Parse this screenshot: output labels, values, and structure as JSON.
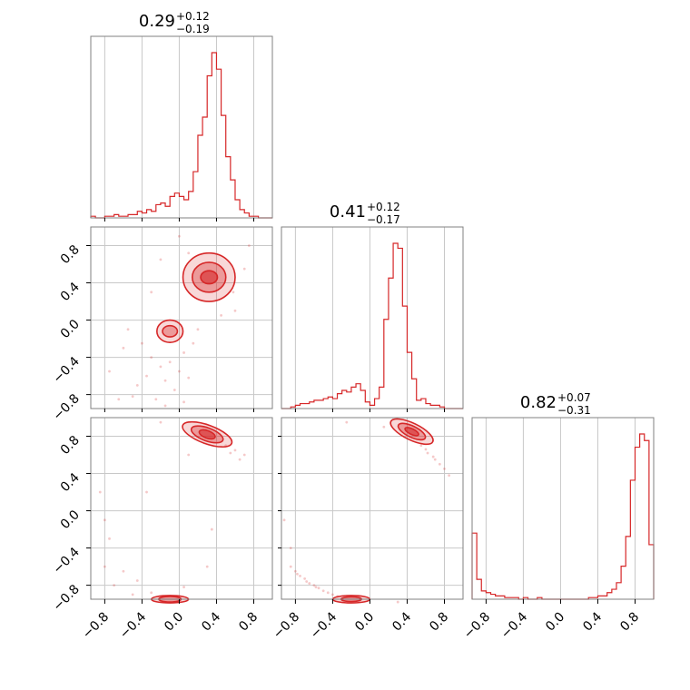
{
  "chart_data": {
    "type": "corner",
    "color": "#d62728",
    "ticks": [
      -0.8,
      -0.4,
      0.0,
      0.4,
      0.8
    ],
    "tick_labels": [
      "−0.8",
      "−0.4",
      "0.0",
      "0.4",
      "0.8"
    ],
    "axis_range": [
      -0.95,
      1.0
    ],
    "grid": true,
    "diagonal_titles": [
      {
        "value": "0.29",
        "plus": "+0.12",
        "minus": "−0.19"
      },
      {
        "value": "0.41",
        "plus": "+0.12",
        "minus": "−0.17"
      },
      {
        "value": "0.82",
        "plus": "+0.07",
        "minus": "−0.31"
      }
    ],
    "histograms": [
      {
        "bin_width": 0.05,
        "bin_start": -0.95,
        "counts": [
          0.01,
          0.0,
          0.0,
          0.01,
          0.01,
          0.02,
          0.01,
          0.01,
          0.02,
          0.02,
          0.04,
          0.03,
          0.05,
          0.04,
          0.08,
          0.09,
          0.07,
          0.13,
          0.15,
          0.13,
          0.11,
          0.16,
          0.28,
          0.5,
          0.61,
          0.86,
          1.0,
          0.9,
          0.62,
          0.37,
          0.23,
          0.11,
          0.05,
          0.03,
          0.01,
          0.01,
          0.0,
          0.0,
          0.0
        ]
      },
      {
        "bin_width": 0.05,
        "bin_start": -0.95,
        "counts": [
          0.0,
          0.0,
          0.01,
          0.02,
          0.03,
          0.03,
          0.04,
          0.05,
          0.05,
          0.06,
          0.07,
          0.06,
          0.09,
          0.11,
          0.1,
          0.13,
          0.15,
          0.11,
          0.04,
          0.02,
          0.06,
          0.13,
          0.54,
          0.79,
          1.0,
          0.97,
          0.62,
          0.34,
          0.18,
          0.05,
          0.06,
          0.03,
          0.02,
          0.02,
          0.01,
          0.0,
          0.0,
          0.0,
          0.0
        ]
      },
      {
        "bin_width": 0.05,
        "bin_start": -0.95,
        "counts": [
          0.4,
          0.12,
          0.05,
          0.04,
          0.03,
          0.02,
          0.02,
          0.01,
          0.01,
          0.01,
          0.0,
          0.01,
          0.0,
          0.0,
          0.01,
          0.0,
          0.0,
          0.0,
          0.0,
          0.0,
          0.0,
          0.0,
          0.0,
          0.0,
          0.0,
          0.01,
          0.01,
          0.02,
          0.02,
          0.04,
          0.06,
          0.1,
          0.2,
          0.38,
          0.72,
          0.92,
          1.0,
          0.96,
          0.33
        ]
      }
    ],
    "contours": [
      {
        "row": 1,
        "col": 0,
        "blobs": [
          {
            "cx": 0.32,
            "cy": 0.46,
            "rx": [
              0.28,
              0.18,
              0.09
            ],
            "ry": [
              0.26,
              0.16,
              0.07
            ]
          },
          {
            "cx": -0.1,
            "cy": -0.12,
            "rx": [
              0.14,
              0.08
            ],
            "ry": [
              0.12,
              0.06
            ]
          }
        ],
        "scatter": [
          [
            -0.75,
            -0.55
          ],
          [
            -0.6,
            -0.3
          ],
          [
            -0.5,
            -0.82
          ],
          [
            -0.45,
            -0.7
          ],
          [
            -0.35,
            -0.6
          ],
          [
            -0.3,
            -0.4
          ],
          [
            -0.25,
            -0.85
          ],
          [
            -0.2,
            -0.5
          ],
          [
            -0.15,
            -0.65
          ],
          [
            -0.1,
            -0.45
          ],
          [
            -0.05,
            -0.75
          ],
          [
            0.0,
            -0.55
          ],
          [
            0.05,
            -0.35
          ],
          [
            0.1,
            -0.62
          ],
          [
            -0.3,
            0.3
          ],
          [
            -0.2,
            0.65
          ],
          [
            0.0,
            0.9
          ],
          [
            0.1,
            0.72
          ],
          [
            0.6,
            0.1
          ],
          [
            0.7,
            0.55
          ],
          [
            0.75,
            0.8
          ],
          [
            -0.55,
            -0.1
          ],
          [
            -0.4,
            -0.25
          ],
          [
            0.15,
            -0.25
          ],
          [
            0.2,
            -0.1
          ],
          [
            -0.65,
            -0.85
          ],
          [
            -0.15,
            -0.92
          ],
          [
            0.05,
            -0.88
          ],
          [
            0.58,
            0.3
          ],
          [
            0.45,
            0.05
          ]
        ]
      },
      {
        "row": 2,
        "col": 0,
        "blobs": [
          {
            "cx": 0.3,
            "cy": 0.82,
            "rx": [
              0.28,
              0.18,
              0.09
            ],
            "ry": [
              0.1,
              0.07,
              0.04
            ],
            "rot": -0.35
          },
          {
            "cx": -0.1,
            "cy": -0.95,
            "rx": [
              0.2,
              0.12
            ],
            "ry": [
              0.04,
              0.03
            ]
          }
        ],
        "scatter": [
          [
            -0.8,
            -0.6
          ],
          [
            -0.75,
            -0.3
          ],
          [
            -0.7,
            -0.8
          ],
          [
            -0.6,
            -0.65
          ],
          [
            -0.5,
            -0.9
          ],
          [
            -0.45,
            -0.75
          ],
          [
            -0.3,
            -0.88
          ],
          [
            0.5,
            0.7
          ],
          [
            0.55,
            0.62
          ],
          [
            0.6,
            0.65
          ],
          [
            0.7,
            0.6
          ],
          [
            0.1,
            0.6
          ],
          [
            -0.2,
            0.95
          ],
          [
            0.35,
            -0.2
          ],
          [
            -0.35,
            0.2
          ],
          [
            -0.85,
            0.2
          ],
          [
            -0.8,
            -0.1
          ],
          [
            0.3,
            -0.6
          ],
          [
            0.65,
            0.55
          ],
          [
            0.05,
            -0.82
          ]
        ]
      },
      {
        "row": 2,
        "col": 1,
        "blobs": [
          {
            "cx": 0.45,
            "cy": 0.85,
            "rx": [
              0.25,
              0.16,
              0.08
            ],
            "ry": [
              0.09,
              0.06,
              0.03
            ],
            "rot": -0.45
          },
          {
            "cx": -0.2,
            "cy": -0.95,
            "rx": [
              0.2,
              0.11
            ],
            "ry": [
              0.04,
              0.025
            ]
          }
        ],
        "scatter": [
          [
            -0.85,
            -0.6
          ],
          [
            -0.8,
            -0.65
          ],
          [
            -0.75,
            -0.7
          ],
          [
            -0.7,
            -0.73
          ],
          [
            -0.65,
            -0.78
          ],
          [
            -0.6,
            -0.8
          ],
          [
            -0.55,
            -0.83
          ],
          [
            -0.5,
            -0.86
          ],
          [
            -0.45,
            -0.88
          ],
          [
            -0.4,
            -0.9
          ],
          [
            -0.35,
            -0.92
          ],
          [
            -0.78,
            -0.68
          ],
          [
            -0.68,
            -0.76
          ],
          [
            -0.58,
            -0.82
          ],
          [
            0.55,
            0.7
          ],
          [
            0.62,
            0.62
          ],
          [
            0.7,
            0.55
          ],
          [
            0.75,
            0.5
          ],
          [
            0.8,
            0.45
          ],
          [
            0.85,
            0.38
          ],
          [
            0.6,
            0.66
          ],
          [
            0.68,
            0.58
          ],
          [
            0.15,
            0.9
          ],
          [
            -0.25,
            0.95
          ],
          [
            -0.85,
            -0.4
          ],
          [
            -0.92,
            -0.1
          ],
          [
            0.3,
            -0.98
          ]
        ]
      }
    ]
  }
}
